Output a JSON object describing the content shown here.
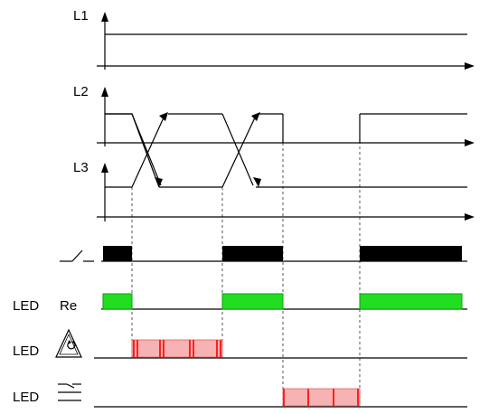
{
  "labels": {
    "l1": "L1",
    "l2": "L2",
    "l3": "L3",
    "led": "LED",
    "re": "Re"
  },
  "icons": {
    "relay_contact": "relay-contact-symbol-icon",
    "phase_sequence": "phase-sequence-warning-triangle-icon",
    "phase_failure": "phase-failure-symbol-icon"
  },
  "colors": {
    "line": "#000000",
    "relay_bar": "#000000",
    "led_re_fill": "#22dd22",
    "led_re_border": "#0aa00a",
    "fault_fill": "#f7b3b3",
    "fault_tick": "#ff2020",
    "guide": "#555555"
  }
}
